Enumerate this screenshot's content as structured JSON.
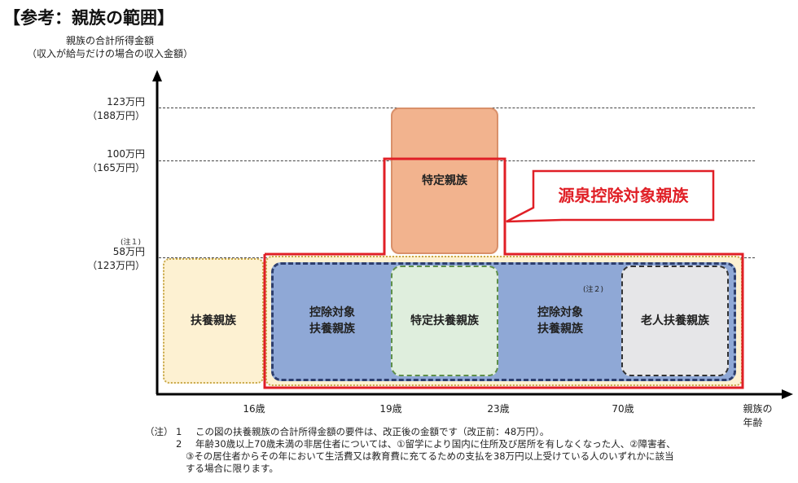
{
  "title": "【参考：親族の範囲】",
  "y_axis": {
    "label": "親族の合計所得金額",
    "sublabel": "（収入が給与だけの場合の収入金額）",
    "ticks": [
      {
        "value": "123万円",
        "alt": "（188万円）"
      },
      {
        "value": "100万円",
        "alt": "（165万円）"
      },
      {
        "value": "58万円",
        "alt": "（123万円）",
        "note": "(注１)"
      }
    ]
  },
  "x_axis": {
    "label": "親族の年齢",
    "ticks": [
      "16歳",
      "19歳",
      "23歳",
      "70歳"
    ]
  },
  "boxes": {
    "fuyou": "扶養親族",
    "tokutei_shinzoku": "特定親族",
    "koujo1": "控除対象\n扶養親族",
    "tokutei_fuyou": "特定扶養親族",
    "koujo2": "控除対象\n扶養親族",
    "koujo2_note": "(注２)",
    "roujin": "老人扶養親族"
  },
  "callout": "源泉控除対象親族",
  "colors": {
    "red": "#e01f26",
    "orange": "#f2b38e",
    "blue": "#8fa8d6",
    "green": "#dfeedd",
    "gray": "#e6e6e8",
    "yellow": "#fdf1d2"
  },
  "notes": {
    "prefix": "（注）",
    "n1": "1",
    "t1": "この図の扶養親族の合計所得金額の要件は、改正後の金額です（改正前：48万円）。",
    "n2": "2",
    "t2": "年齢30歳以上70歳未満の非居住者については、①留学により国内に住所及び居所を有しなくなった人、②障害者、",
    "t2b": "③その居住者からその年において生活費又は教育費に充てるための支払を38万円以上受けている人のいずれかに該当",
    "t2c": "する場合に限ります。"
  }
}
